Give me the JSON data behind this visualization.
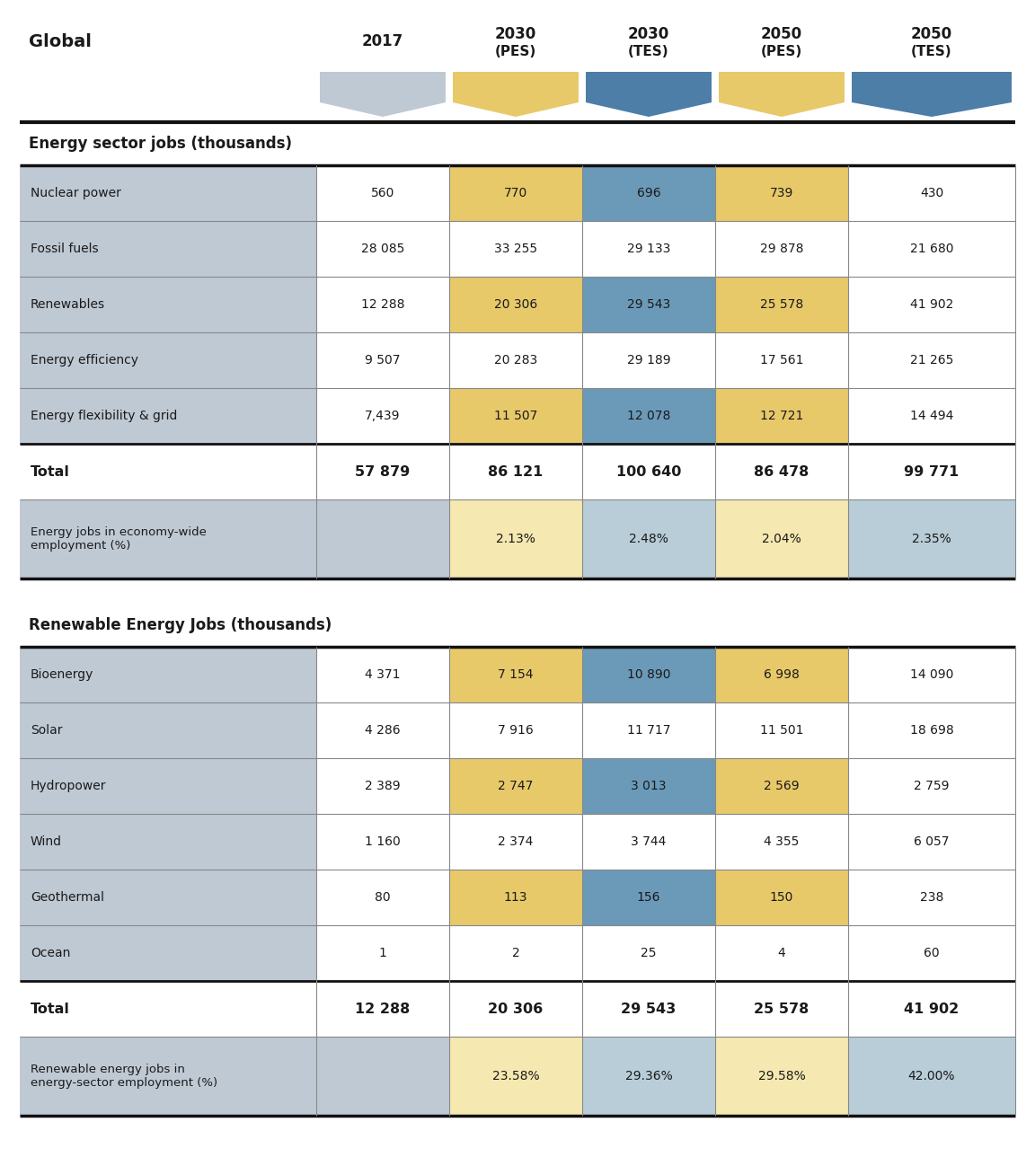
{
  "header": {
    "global_label": "Global",
    "col_labels": [
      "2017",
      "2030\n(PES)",
      "2030\n(TES)",
      "2050\n(PES)",
      "2050\n(TES)"
    ],
    "col_colors": [
      "#bfc9d4",
      "#e8c96a",
      "#4d7ea8",
      "#e8c96a",
      "#4d7ea8"
    ]
  },
  "section1": {
    "title": "Energy sector jobs (thousands)",
    "rows": [
      {
        "label": "Nuclear power",
        "values": [
          "560",
          "770",
          "696",
          "739",
          "430"
        ],
        "shaded": [
          0,
          1,
          1,
          1,
          0
        ]
      },
      {
        "label": "Fossil fuels",
        "values": [
          "28 085",
          "33 255",
          "29 133",
          "29 878",
          "21 680"
        ],
        "shaded": [
          0,
          0,
          0,
          0,
          0
        ]
      },
      {
        "label": "Renewables",
        "values": [
          "12 288",
          "20 306",
          "29 543",
          "25 578",
          "41 902"
        ],
        "shaded": [
          0,
          1,
          1,
          1,
          0
        ]
      },
      {
        "label": "Energy efficiency",
        "values": [
          "9 507",
          "20 283",
          "29 189",
          "17 561",
          "21 265"
        ],
        "shaded": [
          0,
          0,
          0,
          0,
          0
        ]
      },
      {
        "label": "Energy flexibility & grid",
        "values": [
          "7,439",
          "11 507",
          "12 078",
          "12 721",
          "14 494"
        ],
        "shaded": [
          0,
          1,
          1,
          1,
          0
        ]
      }
    ],
    "total_row": {
      "label": "Total",
      "values": [
        "57 879",
        "86 121",
        "100 640",
        "86 478",
        "99 771"
      ]
    },
    "pct_row": {
      "label": "Energy jobs in economy-wide\nemployment (%)",
      "values": [
        "",
        "2.13%",
        "2.48%",
        "2.04%",
        "2.35%"
      ]
    }
  },
  "section2": {
    "title": "Renewable Energy Jobs (thousands)",
    "rows": [
      {
        "label": "Bioenergy",
        "values": [
          "4 371",
          "7 154",
          "10 890",
          "6 998",
          "14 090"
        ],
        "shaded": [
          0,
          1,
          1,
          1,
          0
        ]
      },
      {
        "label": "Solar",
        "values": [
          "4 286",
          "7 916",
          "11 717",
          "11 501",
          "18 698"
        ],
        "shaded": [
          0,
          0,
          0,
          0,
          0
        ]
      },
      {
        "label": "Hydropower",
        "values": [
          "2 389",
          "2 747",
          "3 013",
          "2 569",
          "2 759"
        ],
        "shaded": [
          0,
          1,
          1,
          1,
          0
        ]
      },
      {
        "label": "Wind",
        "values": [
          "1 160",
          "2 374",
          "3 744",
          "4 355",
          "6 057"
        ],
        "shaded": [
          0,
          0,
          0,
          0,
          0
        ]
      },
      {
        "label": "Geothermal",
        "values": [
          "80",
          "113",
          "156",
          "150",
          "238"
        ],
        "shaded": [
          0,
          1,
          1,
          1,
          0
        ]
      },
      {
        "label": "Ocean",
        "values": [
          "1",
          "2",
          "25",
          "4",
          "60"
        ],
        "shaded": [
          0,
          0,
          0,
          0,
          0
        ]
      }
    ],
    "total_row": {
      "label": "Total",
      "values": [
        "12 288",
        "20 306",
        "29 543",
        "25 578",
        "41 902"
      ]
    },
    "pct_row": {
      "label": "Renewable energy jobs in\nenergy-sector employment (%)",
      "values": [
        "",
        "23.58%",
        "29.36%",
        "29.58%",
        "42.00%"
      ]
    }
  },
  "col_shaded_colors": [
    "#bfc9d4",
    "#e8c96a",
    "#6b9ab8",
    "#e8c96a",
    "#6b9ab8"
  ],
  "col_light_colors": [
    "#bfc9d4",
    "#f5e8b0",
    "#b8cdd8",
    "#f5e8b0",
    "#b8cdd8"
  ],
  "label_col_color": "#bfc9d4",
  "white": "#ffffff",
  "border_thin": "#888888",
  "border_thick": "#222222",
  "text_color": "#1a1a1a"
}
